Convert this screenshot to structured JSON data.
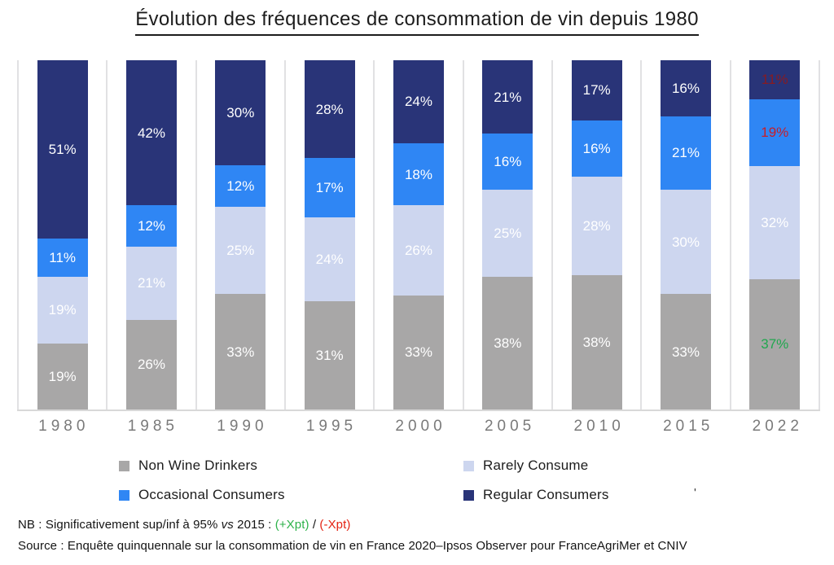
{
  "chart_data": {
    "type": "bar",
    "subtype": "stacked-100-percent",
    "title": "Évolution des fréquences de consommation de vin depuis 1980",
    "categories": [
      "1980",
      "1985",
      "1990",
      "1995",
      "2000",
      "2005",
      "2010",
      "2015",
      "2022"
    ],
    "series": [
      {
        "name": "Non Wine Drinkers",
        "color": "#a8a7a7",
        "values": [
          19,
          26,
          33,
          31,
          33,
          38,
          38,
          33,
          37
        ]
      },
      {
        "name": "Rarely Consume",
        "color": "#cdd6ef",
        "values": [
          19,
          21,
          25,
          24,
          26,
          25,
          28,
          30,
          32
        ]
      },
      {
        "name": "Occasional Consumers",
        "color": "#2f86f4",
        "values": [
          11,
          12,
          12,
          17,
          18,
          16,
          16,
          21,
          19
        ]
      },
      {
        "name": "Regular Consumers",
        "color": "#293478",
        "values": [
          51,
          42,
          30,
          28,
          24,
          21,
          17,
          16,
          11
        ]
      }
    ],
    "stack_order_bottom_to_top": [
      "Non Wine Drinkers",
      "Rarely Consume",
      "Occasional Consumers",
      "Regular Consumers"
    ],
    "value_suffix": "%",
    "default_label_color": "#ffffff",
    "label_color_overrides": {
      "2022": {
        "Non Wine Drinkers": "#21a74f",
        "Occasional Consumers": "#c71e28",
        "Regular Consumers": "#871b22"
      }
    },
    "ylim": [
      0,
      100
    ],
    "grid": "vertical-column-separators",
    "legend_position": "bottom",
    "axis_line_color": "#d8d8d8",
    "separator_color": "#e1e1e3",
    "year_label_color": "#7a7a7a"
  },
  "legend": {
    "items": [
      {
        "label": "Non Wine Drinkers",
        "color": "#a8a7a7"
      },
      {
        "label": "Rarely Consume",
        "color": "#cdd6ef"
      },
      {
        "label": "Occasional Consumers",
        "color": "#2f86f4"
      },
      {
        "label": "Regular Consumers",
        "color": "#293478"
      }
    ],
    "stray_mark": "'"
  },
  "notes": {
    "nb_prefix": "NB : Significativement sup/inf à 95% ",
    "nb_vs": "vs",
    "nb_mid": " 2015 : ",
    "nb_plus": "(+Xpt)",
    "nb_slash": " / ",
    "nb_minus": "(-Xpt)",
    "plus_color": "#2db24a",
    "minus_color": "#e42313",
    "source": "Source : Enquête quinquennale sur la consommation de vin en France 2020–Ipsos Observer pour FranceAgriMer et CNIV"
  }
}
